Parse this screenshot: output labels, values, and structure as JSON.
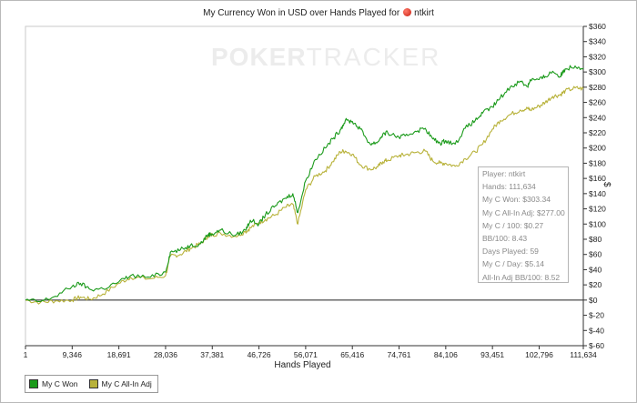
{
  "chart_data": {
    "type": "line",
    "title": "My Currency Won in USD over Hands Played for",
    "player_name": "ntkirt",
    "watermark": [
      "POKER",
      "TRACKER"
    ],
    "xlabel": "Hands Played",
    "ylabel": "$",
    "xlim": [
      1,
      111634
    ],
    "ylim": [
      -60,
      360
    ],
    "x_ticks": [
      1,
      9346,
      18691,
      28036,
      37381,
      46726,
      56071,
      65416,
      74761,
      84106,
      93451,
      102796,
      111634
    ],
    "x_tick_labels": [
      "1",
      "9,346",
      "18,691",
      "28,036",
      "37,381",
      "46,726",
      "56,071",
      "65,416",
      "74,761",
      "84,106",
      "93,451",
      "102,796",
      "111,634"
    ],
    "y_ticks": [
      -60,
      -40,
      -20,
      0,
      20,
      40,
      60,
      80,
      100,
      120,
      140,
      160,
      180,
      200,
      220,
      240,
      260,
      280,
      300,
      320,
      340,
      360
    ],
    "y_tick_labels": [
      "$-60",
      "$-40",
      "$-20",
      "$0",
      "$20",
      "$40",
      "$60",
      "$80",
      "$100",
      "$120",
      "$140",
      "$160",
      "$180",
      "$200",
      "$220",
      "$240",
      "$260",
      "$280",
      "$300",
      "$320",
      "$340",
      "$360"
    ],
    "grid": false,
    "legend_position": "bottom-left",
    "series": [
      {
        "name": "My C Won",
        "color": "#1a9a1a",
        "points": [
          [
            1,
            0
          ],
          [
            3000,
            -2
          ],
          [
            6000,
            5
          ],
          [
            9346,
            18
          ],
          [
            11000,
            22
          ],
          [
            13000,
            14
          ],
          [
            15500,
            15
          ],
          [
            18691,
            24
          ],
          [
            21000,
            32
          ],
          [
            25000,
            30
          ],
          [
            28036,
            37
          ],
          [
            29000,
            63
          ],
          [
            31000,
            66
          ],
          [
            33000,
            72
          ],
          [
            35000,
            74
          ],
          [
            36500,
            86
          ],
          [
            37381,
            87
          ],
          [
            39000,
            92
          ],
          [
            42000,
            85
          ],
          [
            44000,
            92
          ],
          [
            45000,
            105
          ],
          [
            46726,
            100
          ],
          [
            48000,
            112
          ],
          [
            50000,
            124
          ],
          [
            52000,
            134
          ],
          [
            53500,
            140
          ],
          [
            54500,
            115
          ],
          [
            56071,
            157
          ],
          [
            58000,
            185
          ],
          [
            60000,
            200
          ],
          [
            61500,
            212
          ],
          [
            63000,
            224
          ],
          [
            64000,
            236
          ],
          [
            65416,
            235
          ],
          [
            67000,
            225
          ],
          [
            69000,
            205
          ],
          [
            70500,
            208
          ],
          [
            71500,
            218
          ],
          [
            72500,
            220
          ],
          [
            74761,
            214
          ],
          [
            76000,
            216
          ],
          [
            78000,
            222
          ],
          [
            80000,
            226
          ],
          [
            81500,
            212
          ],
          [
            83000,
            206
          ],
          [
            84106,
            210
          ],
          [
            86000,
            205
          ],
          [
            88000,
            226
          ],
          [
            90000,
            236
          ],
          [
            91500,
            246
          ],
          [
            93451,
            254
          ],
          [
            95000,
            266
          ],
          [
            97000,
            280
          ],
          [
            99000,
            288
          ],
          [
            100500,
            281
          ],
          [
            101000,
            290
          ],
          [
            102796,
            290
          ],
          [
            104000,
            294
          ],
          [
            105500,
            301
          ],
          [
            107000,
            294
          ],
          [
            108000,
            304
          ],
          [
            110000,
            308
          ],
          [
            111634,
            305
          ]
        ]
      },
      {
        "name": "My C All-In Adj",
        "color": "#b8b23a",
        "points": [
          [
            1,
            0
          ],
          [
            3000,
            -3
          ],
          [
            6000,
            -1
          ],
          [
            9346,
            0
          ],
          [
            11000,
            4
          ],
          [
            13000,
            1
          ],
          [
            15500,
            8
          ],
          [
            18691,
            22
          ],
          [
            21000,
            30
          ],
          [
            25000,
            28
          ],
          [
            28036,
            32
          ],
          [
            29000,
            58
          ],
          [
            31000,
            60
          ],
          [
            33000,
            68
          ],
          [
            35000,
            74
          ],
          [
            36500,
            84
          ],
          [
            37381,
            86
          ],
          [
            39000,
            88
          ],
          [
            42000,
            84
          ],
          [
            44000,
            90
          ],
          [
            45000,
            95
          ],
          [
            46726,
            102
          ],
          [
            48000,
            106
          ],
          [
            50000,
            112
          ],
          [
            52000,
            122
          ],
          [
            53500,
            126
          ],
          [
            54500,
            100
          ],
          [
            56071,
            145
          ],
          [
            58000,
            163
          ],
          [
            60000,
            170
          ],
          [
            61500,
            182
          ],
          [
            63000,
            195
          ],
          [
            64000,
            196
          ],
          [
            65416,
            192
          ],
          [
            67000,
            178
          ],
          [
            69000,
            172
          ],
          [
            70500,
            175
          ],
          [
            71500,
            182
          ],
          [
            72500,
            184
          ],
          [
            74761,
            190
          ],
          [
            76000,
            191
          ],
          [
            78000,
            194
          ],
          [
            80000,
            196
          ],
          [
            81500,
            183
          ],
          [
            83000,
            180
          ],
          [
            84106,
            180
          ],
          [
            86000,
            176
          ],
          [
            88000,
            186
          ],
          [
            90000,
            195
          ],
          [
            91500,
            205
          ],
          [
            93451,
            225
          ],
          [
            95000,
            236
          ],
          [
            97000,
            244
          ],
          [
            99000,
            250
          ],
          [
            100500,
            252
          ],
          [
            101000,
            250
          ],
          [
            102796,
            255
          ],
          [
            104000,
            260
          ],
          [
            105500,
            268
          ],
          [
            107000,
            270
          ],
          [
            108000,
            275
          ],
          [
            110000,
            279
          ],
          [
            111634,
            278
          ]
        ]
      }
    ]
  },
  "info_box": {
    "player": "Player: ntkirt",
    "hands": "Hands: 111,634",
    "won": "My C Won: $303.34",
    "allin_adj": "My C All-In Adj: $277.00",
    "per100": "My C / 100: $0.27",
    "bb100": "BB/100: 8.43",
    "days": "Days Played: 59",
    "perday": "My C / Day: $5.14",
    "allin_bb100": "All-In Adj BB/100: 8.52"
  },
  "legend": [
    {
      "label": "My C Won",
      "color": "#1a9a1a"
    },
    {
      "label": "My C All-In Adj",
      "color": "#b8b23a"
    }
  ]
}
